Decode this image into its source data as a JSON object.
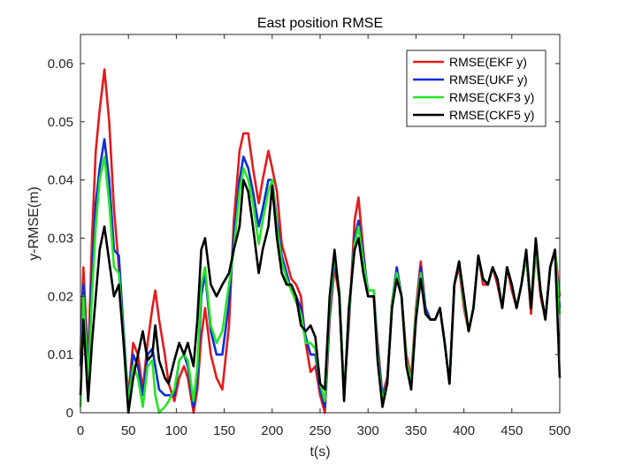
{
  "chart_data": {
    "type": "line",
    "title": "East position RMSE",
    "xlabel": "t(s)",
    "ylabel": "y-RMSE(m)",
    "xlim": [
      0,
      500
    ],
    "ylim": [
      0,
      0.065
    ],
    "xticks": [
      0,
      50,
      100,
      150,
      200,
      250,
      300,
      350,
      400,
      450,
      500
    ],
    "xtick_labels": [
      "0",
      "50",
      "100",
      "150",
      "200",
      "250",
      "300",
      "350",
      "400",
      "450",
      "500"
    ],
    "yticks": [
      0,
      0.01,
      0.02,
      0.03,
      0.04,
      0.05,
      0.06
    ],
    "ytick_labels": [
      "0",
      "0.01",
      "0.02",
      "0.03",
      "0.04",
      "0.05",
      "0.06"
    ],
    "grid": false,
    "legend_position": "top-right",
    "series": [
      {
        "name": "RMSE(EKF y)",
        "color": "#e31a1c",
        "x": [
          0,
          3,
          8,
          12,
          16,
          20,
          25,
          30,
          35,
          40,
          45,
          50,
          55,
          60,
          65,
          70,
          75,
          78,
          82,
          88,
          92,
          98,
          103,
          108,
          112,
          118,
          122,
          126,
          130,
          136,
          142,
          148,
          155,
          160,
          166,
          170,
          175,
          180,
          186,
          190,
          196,
          200,
          205,
          210,
          215,
          220,
          225,
          230,
          235,
          240,
          245,
          250,
          255,
          260,
          265,
          270,
          275,
          280,
          286,
          290,
          295,
          300,
          306,
          310,
          315,
          320,
          325,
          330,
          335,
          340,
          345,
          350,
          355,
          360,
          365,
          370,
          375,
          380,
          385,
          390,
          395,
          400,
          405,
          410,
          415,
          420,
          425,
          430,
          435,
          440,
          445,
          450,
          455,
          460,
          465,
          470,
          475,
          480,
          485,
          490,
          495,
          500
        ],
        "values": [
          0.01,
          0.025,
          0.008,
          0.03,
          0.045,
          0.052,
          0.059,
          0.05,
          0.035,
          0.025,
          0.012,
          0.003,
          0.012,
          0.01,
          0.004,
          0.012,
          0.018,
          0.021,
          0.016,
          0.01,
          0.005,
          0.002,
          0.006,
          0.008,
          0.006,
          0.0,
          0.004,
          0.013,
          0.018,
          0.01,
          0.006,
          0.004,
          0.015,
          0.033,
          0.045,
          0.048,
          0.048,
          0.042,
          0.036,
          0.04,
          0.045,
          0.042,
          0.038,
          0.029,
          0.026,
          0.023,
          0.022,
          0.02,
          0.012,
          0.007,
          0.008,
          0.003,
          0.0,
          0.016,
          0.025,
          0.02,
          0.003,
          0.015,
          0.033,
          0.037,
          0.028,
          0.02,
          0.02,
          0.012,
          0.003,
          0.006,
          0.018,
          0.025,
          0.02,
          0.01,
          0.006,
          0.018,
          0.026,
          0.018,
          0.016,
          0.016,
          0.018,
          0.012,
          0.005,
          0.022,
          0.025,
          0.018,
          0.014,
          0.018,
          0.027,
          0.022,
          0.022,
          0.025,
          0.022,
          0.018,
          0.025,
          0.021,
          0.018,
          0.022,
          0.027,
          0.017,
          0.028,
          0.02,
          0.016,
          0.025,
          0.028,
          0.02
        ]
      },
      {
        "name": "RMSE(UKF y)",
        "color": "#0b2ed6",
        "x": [
          0,
          3,
          8,
          12,
          16,
          20,
          25,
          30,
          35,
          40,
          45,
          50,
          55,
          60,
          65,
          70,
          75,
          78,
          82,
          88,
          92,
          98,
          103,
          108,
          112,
          118,
          122,
          126,
          130,
          136,
          142,
          148,
          155,
          160,
          166,
          170,
          175,
          180,
          186,
          190,
          196,
          200,
          205,
          210,
          215,
          220,
          225,
          230,
          235,
          240,
          245,
          250,
          255,
          260,
          265,
          270,
          275,
          280,
          286,
          290,
          295,
          300,
          306,
          310,
          315,
          320,
          325,
          330,
          335,
          340,
          345,
          350,
          355,
          360,
          365,
          370,
          375,
          380,
          385,
          390,
          395,
          400,
          405,
          410,
          415,
          420,
          425,
          430,
          435,
          440,
          445,
          450,
          455,
          460,
          465,
          470,
          475,
          480,
          485,
          490,
          495,
          500
        ],
        "values": [
          0.008,
          0.022,
          0.006,
          0.024,
          0.036,
          0.042,
          0.047,
          0.04,
          0.028,
          0.027,
          0.014,
          0.002,
          0.01,
          0.008,
          0.003,
          0.01,
          0.011,
          0.008,
          0.004,
          0.003,
          0.003,
          0.003,
          0.009,
          0.01,
          0.008,
          0.001,
          0.006,
          0.02,
          0.024,
          0.014,
          0.01,
          0.01,
          0.019,
          0.03,
          0.04,
          0.044,
          0.042,
          0.038,
          0.032,
          0.035,
          0.04,
          0.04,
          0.033,
          0.027,
          0.024,
          0.021,
          0.02,
          0.018,
          0.013,
          0.01,
          0.01,
          0.004,
          0.001,
          0.017,
          0.026,
          0.021,
          0.003,
          0.016,
          0.03,
          0.033,
          0.027,
          0.021,
          0.021,
          0.011,
          0.003,
          0.005,
          0.019,
          0.025,
          0.02,
          0.009,
          0.005,
          0.017,
          0.025,
          0.018,
          0.016,
          0.016,
          0.018,
          0.012,
          0.005,
          0.022,
          0.026,
          0.019,
          0.014,
          0.018,
          0.027,
          0.023,
          0.022,
          0.025,
          0.023,
          0.018,
          0.025,
          0.022,
          0.018,
          0.022,
          0.027,
          0.018,
          0.028,
          0.021,
          0.016,
          0.025,
          0.028,
          0.018
        ]
      },
      {
        "name": "RMSE(CKF3 y)",
        "color": "#22e622",
        "x": [
          0,
          3,
          8,
          12,
          16,
          20,
          25,
          30,
          35,
          40,
          45,
          50,
          55,
          60,
          65,
          70,
          75,
          78,
          82,
          88,
          92,
          98,
          103,
          108,
          112,
          118,
          122,
          126,
          130,
          136,
          142,
          148,
          155,
          160,
          166,
          170,
          175,
          180,
          186,
          190,
          196,
          200,
          205,
          210,
          215,
          220,
          225,
          230,
          235,
          240,
          245,
          250,
          255,
          260,
          265,
          270,
          275,
          280,
          286,
          290,
          295,
          300,
          306,
          310,
          315,
          320,
          325,
          330,
          335,
          340,
          345,
          350,
          355,
          360,
          365,
          370,
          375,
          380,
          385,
          390,
          395,
          400,
          405,
          410,
          415,
          420,
          425,
          430,
          435,
          440,
          445,
          450,
          455,
          460,
          465,
          470,
          475,
          480,
          485,
          490,
          495,
          500
        ],
        "values": [
          0.001,
          0.02,
          0.005,
          0.02,
          0.032,
          0.04,
          0.044,
          0.036,
          0.025,
          0.024,
          0.013,
          0.002,
          0.008,
          0.006,
          0.001,
          0.008,
          0.009,
          0.003,
          0.0,
          0.001,
          0.002,
          0.004,
          0.009,
          0.01,
          0.009,
          0.002,
          0.008,
          0.022,
          0.025,
          0.015,
          0.012,
          0.014,
          0.022,
          0.028,
          0.038,
          0.042,
          0.04,
          0.036,
          0.029,
          0.033,
          0.038,
          0.04,
          0.032,
          0.026,
          0.023,
          0.021,
          0.019,
          0.017,
          0.012,
          0.012,
          0.011,
          0.005,
          0.002,
          0.018,
          0.027,
          0.021,
          0.003,
          0.017,
          0.029,
          0.032,
          0.026,
          0.021,
          0.021,
          0.01,
          0.002,
          0.005,
          0.019,
          0.024,
          0.02,
          0.009,
          0.005,
          0.017,
          0.024,
          0.017,
          0.016,
          0.016,
          0.018,
          0.012,
          0.005,
          0.022,
          0.026,
          0.019,
          0.014,
          0.018,
          0.027,
          0.023,
          0.022,
          0.025,
          0.023,
          0.018,
          0.025,
          0.022,
          0.018,
          0.022,
          0.027,
          0.018,
          0.028,
          0.021,
          0.016,
          0.025,
          0.028,
          0.017
        ]
      },
      {
        "name": "RMSE(CKF5 y)",
        "color": "#000000",
        "x": [
          0,
          3,
          8,
          12,
          16,
          20,
          25,
          30,
          35,
          40,
          45,
          50,
          55,
          60,
          65,
          70,
          75,
          78,
          82,
          88,
          92,
          98,
          103,
          108,
          112,
          118,
          122,
          126,
          130,
          136,
          142,
          148,
          155,
          160,
          166,
          170,
          175,
          180,
          186,
          190,
          196,
          200,
          205,
          210,
          215,
          220,
          225,
          230,
          235,
          240,
          245,
          250,
          255,
          260,
          265,
          270,
          275,
          280,
          286,
          290,
          295,
          300,
          306,
          310,
          315,
          320,
          325,
          330,
          335,
          340,
          345,
          350,
          355,
          360,
          365,
          370,
          375,
          380,
          385,
          390,
          395,
          400,
          405,
          410,
          415,
          420,
          425,
          430,
          435,
          440,
          445,
          450,
          455,
          460,
          465,
          470,
          475,
          480,
          485,
          490,
          495,
          500
        ],
        "values": [
          0.003,
          0.016,
          0.002,
          0.012,
          0.02,
          0.028,
          0.032,
          0.026,
          0.02,
          0.022,
          0.012,
          0.0,
          0.006,
          0.01,
          0.014,
          0.009,
          0.01,
          0.015,
          0.009,
          0.006,
          0.005,
          0.009,
          0.012,
          0.01,
          0.012,
          0.008,
          0.016,
          0.028,
          0.03,
          0.022,
          0.02,
          0.022,
          0.024,
          0.028,
          0.032,
          0.04,
          0.038,
          0.032,
          0.024,
          0.028,
          0.032,
          0.039,
          0.03,
          0.024,
          0.022,
          0.022,
          0.02,
          0.015,
          0.014,
          0.015,
          0.013,
          0.005,
          0.004,
          0.02,
          0.028,
          0.02,
          0.002,
          0.018,
          0.028,
          0.03,
          0.024,
          0.02,
          0.02,
          0.009,
          0.001,
          0.005,
          0.018,
          0.023,
          0.02,
          0.008,
          0.004,
          0.016,
          0.023,
          0.017,
          0.016,
          0.016,
          0.018,
          0.012,
          0.005,
          0.022,
          0.026,
          0.02,
          0.014,
          0.018,
          0.027,
          0.023,
          0.022,
          0.025,
          0.023,
          0.018,
          0.025,
          0.022,
          0.018,
          0.022,
          0.028,
          0.018,
          0.03,
          0.021,
          0.016,
          0.025,
          0.028,
          0.006
        ]
      }
    ]
  }
}
